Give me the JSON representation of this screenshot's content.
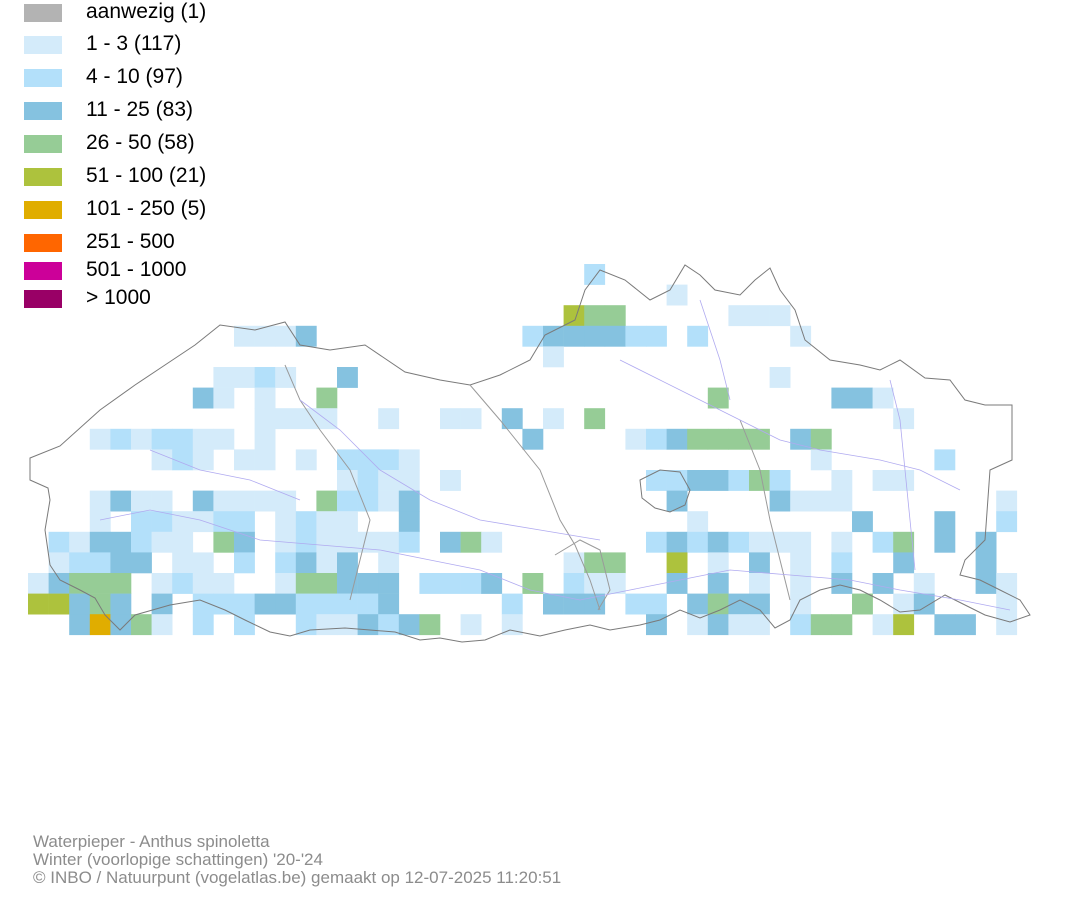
{
  "legend": {
    "classes": [
      {
        "label": "aanwezig (1)",
        "color": "#b3b3b3"
      },
      {
        "label": "1 - 3 (117)",
        "color": "#d4ebfa"
      },
      {
        "label": "4 - 10 (97)",
        "color": "#b3e0fa"
      },
      {
        "label": "11 - 25 (83)",
        "color": "#85c2e0"
      },
      {
        "label": "26 - 50 (58)",
        "color": "#96cc96"
      },
      {
        "label": "51 - 100 (21)",
        "color": "#adc23d"
      },
      {
        "label": "101 - 250 (5)",
        "color": "#e0ad00"
      },
      {
        "label": "251 - 500",
        "color": "#ff6600"
      },
      {
        "label": "501 - 1000",
        "color": "#cc0099"
      },
      {
        "label": "> 1000",
        "color": "#990066"
      }
    ]
  },
  "caption": {
    "species": "Waterpieper - Anthus spinoletta",
    "period": "Winter (voorlopige schattingen) '20-'24",
    "credit": "© INBO / Natuurpunt (vogelatlas.be) gemaakt op 12-07-2025 11:20:51"
  }
}
